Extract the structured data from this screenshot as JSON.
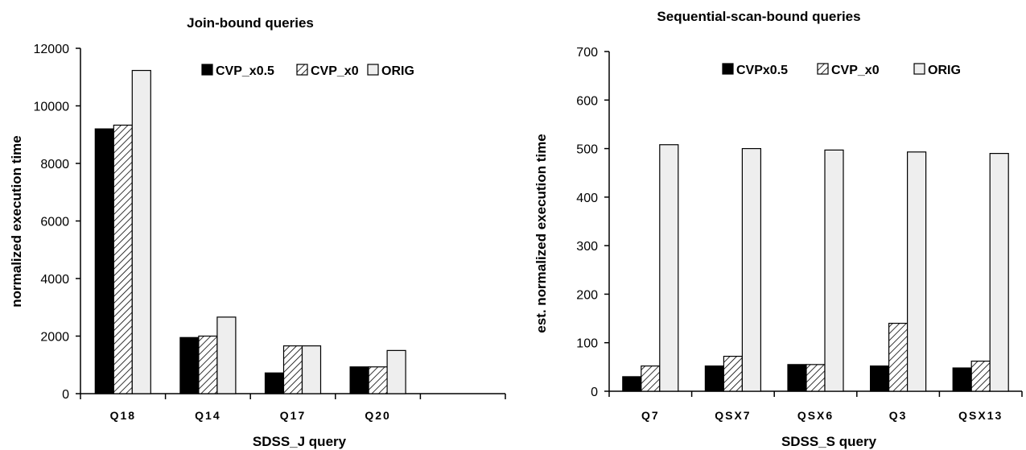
{
  "chart_data": [
    {
      "type": "bar",
      "title": "Join-bound queries",
      "xlabel": "SDSS_J query",
      "ylabel": "normalized execution time",
      "ylim": [
        0,
        12000
      ],
      "yticks": [
        0,
        2000,
        4000,
        6000,
        8000,
        10000,
        12000
      ],
      "categories": [
        "Q18",
        "Q14",
        "Q17",
        "Q20",
        ""
      ],
      "series": [
        {
          "name": "CVP_x0.5",
          "values": [
            9200,
            1950,
            720,
            930,
            null
          ],
          "fill": "#000000"
        },
        {
          "name": "CVP_x0",
          "values": [
            9330,
            2000,
            1660,
            930,
            null
          ],
          "fill": "hatch"
        },
        {
          "name": "ORIG",
          "values": [
            11230,
            2660,
            1660,
            1500,
            null
          ],
          "fill": "#eeeeee"
        }
      ],
      "legend_position": "top-right",
      "grid": false
    },
    {
      "type": "bar",
      "title": "Sequential-scan-bound queries",
      "xlabel": "SDSS_S query",
      "ylabel": "est. normalized execution time",
      "ylim": [
        0,
        700
      ],
      "yticks": [
        0,
        100,
        200,
        300,
        400,
        500,
        600,
        700
      ],
      "categories": [
        "Q7",
        "QSX7",
        "QSX6",
        "Q3",
        "QSX13"
      ],
      "series": [
        {
          "name": "CVPx0.5",
          "values": [
            30,
            52,
            55,
            52,
            48
          ],
          "fill": "#000000"
        },
        {
          "name": "CVP_x0",
          "values": [
            52,
            72,
            55,
            140,
            62
          ],
          "fill": "hatch"
        },
        {
          "name": "ORIG",
          "values": [
            508,
            500,
            497,
            493,
            490
          ],
          "fill": "#eeeeee"
        }
      ],
      "legend_position": "top-right",
      "grid": false
    }
  ]
}
